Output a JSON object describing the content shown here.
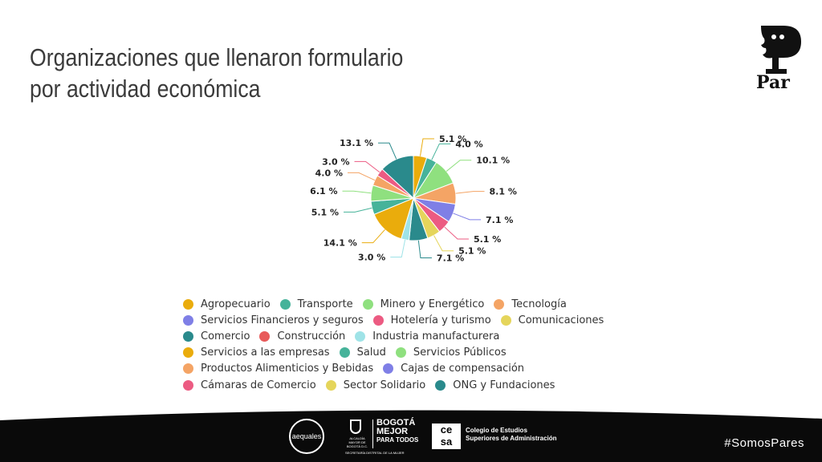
{
  "slide": {
    "title_lines": [
      "Organizaciones que llenaron formulario",
      "por actividad económica"
    ],
    "hashtag": "#SomosPares",
    "logos": {
      "par": "Par",
      "aequales": "aequales",
      "bogota_alcaldia": "ALCALDÍA MAYOR DE BOGOTÁ D.C.",
      "bogota_brand": [
        "BOGOTÁ",
        "MEJOR",
        "PARA TODOS"
      ],
      "bogota_secretaria": "SECRETARÍA DISTRITAL DE LA MUJER",
      "cesa_mark": [
        "ce",
        "sa"
      ],
      "cesa_name": [
        "Colegio de Estudios",
        "Superiores de Administración"
      ]
    }
  },
  "chart_data": {
    "type": "pie",
    "title": "",
    "legend_position": "bottom",
    "slices": [
      {
        "name": "Agropecuario",
        "value": 5.1,
        "label": "5.1 %",
        "color": "#EAAC0C"
      },
      {
        "name": "Transporte",
        "value": 4.0,
        "label": "4.0 %",
        "color": "#46B39A"
      },
      {
        "name": "Minero y Energético",
        "value": 10.1,
        "label": "10.1 %",
        "color": "#8FE07F"
      },
      {
        "name": "Tecnología",
        "value": 8.1,
        "label": "8.1 %",
        "color": "#F4A465"
      },
      {
        "name": "Servicios Financieros y seguros",
        "value": 7.1,
        "label": "7.1 %",
        "color": "#7F7FE6"
      },
      {
        "name": "Hotelería y turismo",
        "value": 5.1,
        "label": "5.1 %",
        "color": "#EC5B82"
      },
      {
        "name": "Comunicaciones",
        "value": 5.1,
        "label": "5.1 %",
        "color": "#E5D55B"
      },
      {
        "name": "Comercio",
        "value": 7.1,
        "label": "7.1 %",
        "color": "#2A8A8C"
      },
      {
        "name": "Construcción",
        "value": 0,
        "label": "",
        "color": "#E85A5A"
      },
      {
        "name": "Industria manufacturera",
        "value": 3.0,
        "label": "3.0 %",
        "color": "#9FE3E7"
      },
      {
        "name": "Servicios a las empresas",
        "value": 14.1,
        "label": "14.1 %",
        "color": "#EAAC0C"
      },
      {
        "name": "Salud",
        "value": 5.1,
        "label": "5.1 %",
        "color": "#46B39A"
      },
      {
        "name": "Servicios Públicos",
        "value": 6.1,
        "label": "6.1 %",
        "color": "#8FE07F"
      },
      {
        "name": "Productos Alimenticios y Bebidas",
        "value": 4.0,
        "label": "4.0 %",
        "color": "#F4A465"
      },
      {
        "name": "Cajas de compensación",
        "value": 0,
        "label": "",
        "color": "#7F7FE6"
      },
      {
        "name": "Cámaras de Comercio",
        "value": 3.0,
        "label": "3.0 %",
        "color": "#EC5B82"
      },
      {
        "name": "Sector Solidario",
        "value": 0,
        "label": "",
        "color": "#E5D55B"
      },
      {
        "name": "ONG y Fundaciones",
        "value": 13.1,
        "label": "13.1 %",
        "color": "#2A8A8C"
      }
    ],
    "legend_rows": [
      [
        0,
        1,
        2,
        3
      ],
      [
        4,
        5,
        6
      ],
      [
        7,
        8,
        9
      ],
      [
        10,
        11,
        12
      ],
      [
        13,
        14
      ],
      [
        15,
        16,
        17
      ]
    ]
  }
}
